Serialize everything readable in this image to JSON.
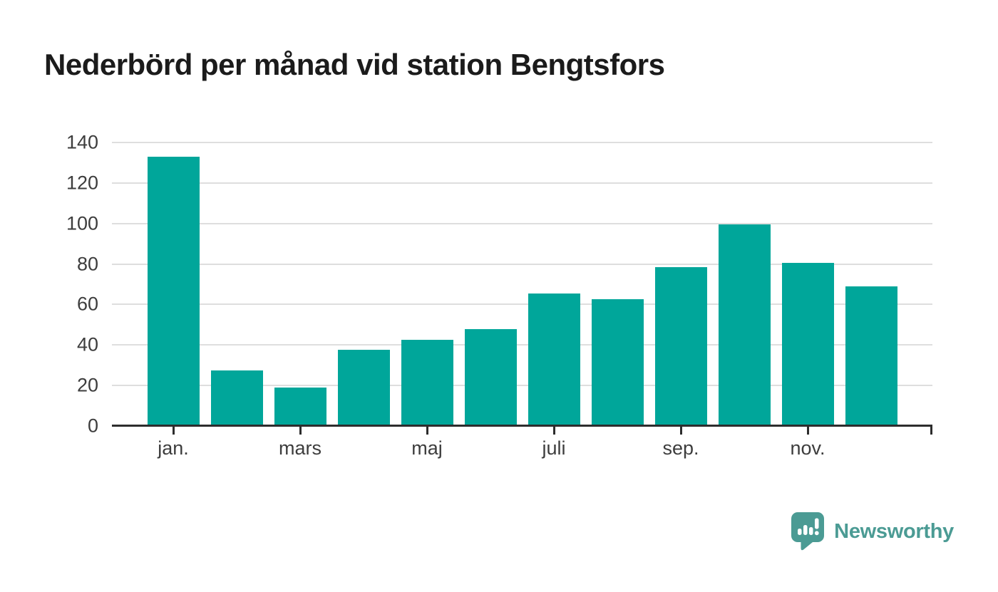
{
  "header": {
    "title": "Nederbörd per månad vid station Bengtsfors"
  },
  "chart_data": {
    "type": "bar",
    "title": "Nederbörd per månad vid station Bengtsfors",
    "n_bars": 12,
    "values": [
      133,
      27.5,
      19,
      37.5,
      42.5,
      48,
      65.5,
      62.5,
      78.5,
      99.5,
      80.5,
      69
    ],
    "x_ticks": [
      {
        "index": 0,
        "label": "jan."
      },
      {
        "index": 2,
        "label": "mars"
      },
      {
        "index": 4,
        "label": "maj"
      },
      {
        "index": 6,
        "label": "juli"
      },
      {
        "index": 8,
        "label": "sep."
      },
      {
        "index": 10,
        "label": "nov."
      }
    ],
    "y_ticks": [
      0,
      20,
      40,
      60,
      80,
      100,
      120,
      140
    ],
    "ylim": [
      0,
      140
    ],
    "xlabel": "",
    "ylabel": "",
    "grid": "horizontal",
    "legend": "none",
    "bar_color": "#00a69a"
  },
  "branding": {
    "text": "Newsworthy",
    "icon": "newsworthy-logo-icon"
  },
  "colors": {
    "bar": "#00a69a",
    "axis": "#2d2d2d",
    "grid": "#dedede",
    "tick_text": "#3d3d3d",
    "title_text": "#1b1b1b",
    "logo": "#4b9b94",
    "background": "#ffffff"
  }
}
